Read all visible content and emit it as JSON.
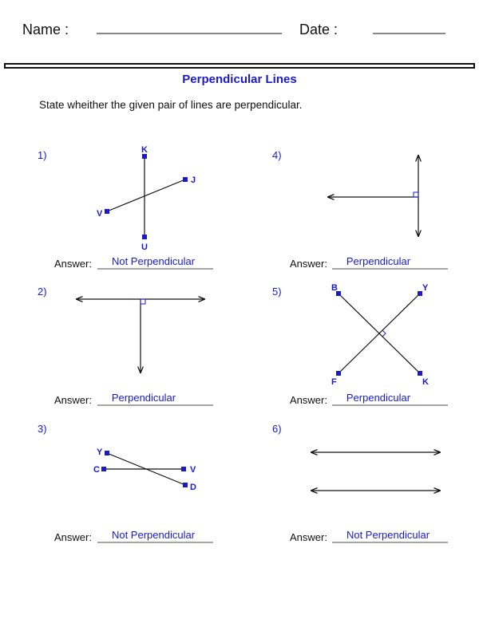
{
  "header": {
    "name_label": "Name :",
    "date_label": "Date :"
  },
  "title": "Perpendicular Lines",
  "instruction": "State wheither the given pair of lines are perpendicular.",
  "answer_label": "Answer:",
  "colors": {
    "accent": "#1a1acc",
    "text": "#111111"
  },
  "problems": [
    {
      "number": "1)",
      "points": [
        "K",
        "U",
        "J",
        "V"
      ],
      "answer": "Not Perpendicular"
    },
    {
      "number": "2)",
      "points": [],
      "answer": "Perpendicular"
    },
    {
      "number": "3)",
      "points": [
        "Y",
        "D",
        "C",
        "V"
      ],
      "answer": "Not Perpendicular"
    },
    {
      "number": "4)",
      "points": [],
      "answer": "Perpendicular"
    },
    {
      "number": "5)",
      "points": [
        "B",
        "K",
        "Y",
        "F"
      ],
      "answer": "Perpendicular"
    },
    {
      "number": "6)",
      "points": [],
      "answer": "Not Perpendicular"
    }
  ]
}
